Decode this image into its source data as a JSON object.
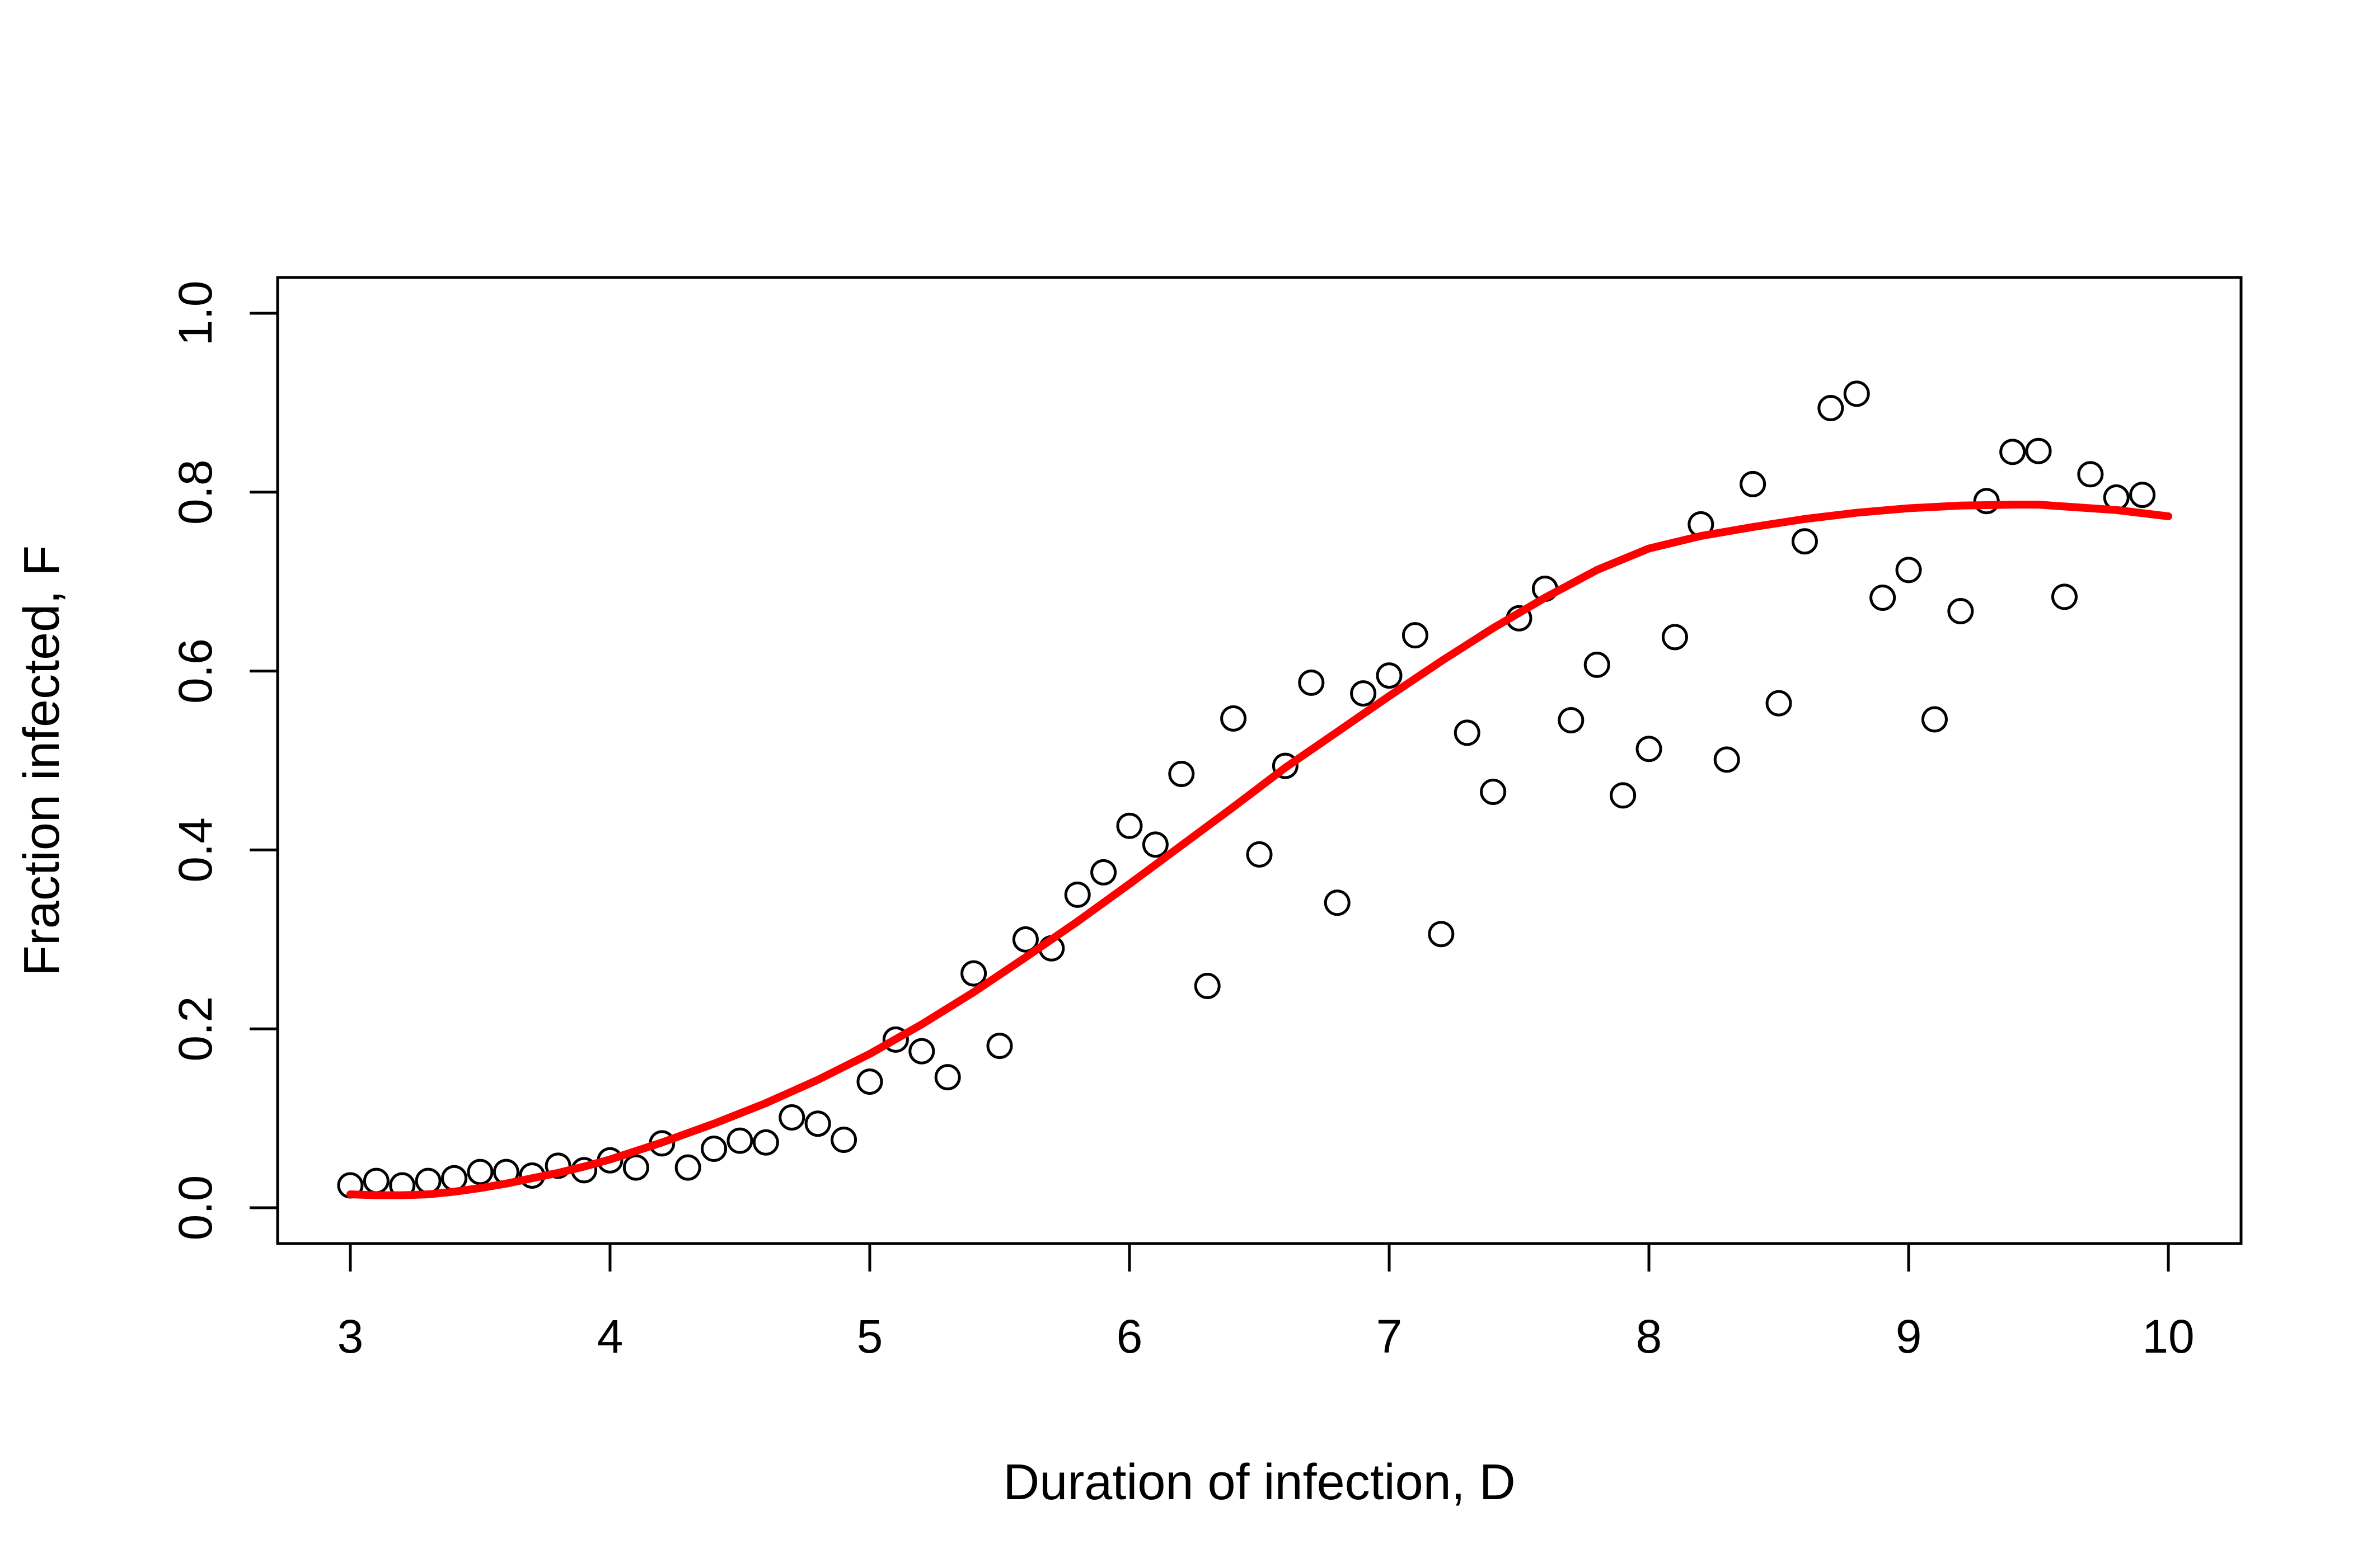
{
  "chart_data": {
    "type": "scatter",
    "title": "",
    "xlabel": "Duration of infection, D",
    "ylabel": "Fraction infected, F",
    "xlim": [
      2.72,
      10.28
    ],
    "ylim": [
      -0.04,
      1.04
    ],
    "x_ticks": [
      3,
      4,
      5,
      6,
      7,
      8,
      9,
      10
    ],
    "y_ticks": [
      0.0,
      0.2,
      0.4,
      0.6,
      0.8,
      1.0
    ],
    "x_tick_labels": [
      "3",
      "4",
      "5",
      "6",
      "7",
      "8",
      "9",
      "10"
    ],
    "y_tick_labels": [
      "0.0",
      "0.2",
      "0.4",
      "0.6",
      "0.8",
      "1.0"
    ],
    "grid": false,
    "legend": "none",
    "colors": {
      "points": "#000000",
      "fit": "#ff0000"
    },
    "series": [
      {
        "kind": "points",
        "x": [
          3.0,
          3.1,
          3.2,
          3.3,
          3.4,
          3.5,
          3.6,
          3.7,
          3.8,
          3.9,
          4.0,
          4.1,
          4.2,
          4.3,
          4.4,
          4.5,
          4.6,
          4.7,
          4.8,
          4.9,
          5.0,
          5.1,
          5.2,
          5.3,
          5.4,
          5.5,
          5.6,
          5.7,
          5.8,
          5.9,
          6.0,
          6.1,
          6.2,
          6.3,
          6.4,
          6.5,
          6.6,
          6.7,
          6.8,
          6.9,
          7.0,
          7.1,
          7.2,
          7.3,
          7.4,
          7.5,
          7.6,
          7.7,
          7.8,
          7.9,
          8.0,
          8.1,
          8.2,
          8.3,
          8.4,
          8.5,
          8.6,
          8.7,
          8.8,
          8.9,
          9.0,
          9.1,
          9.2,
          9.3,
          9.4,
          9.5,
          9.6,
          9.7,
          9.8,
          9.9
        ],
        "y": [
          0.025,
          0.03,
          0.025,
          0.03,
          0.033,
          0.04,
          0.04,
          0.036,
          0.047,
          0.042,
          0.053,
          0.045,
          0.072,
          0.045,
          0.066,
          0.075,
          0.073,
          0.101,
          0.094,
          0.076,
          0.141,
          0.188,
          0.175,
          0.146,
          0.262,
          0.181,
          0.3,
          0.29,
          0.35,
          0.375,
          0.427,
          0.406,
          0.485,
          0.248,
          0.547,
          0.395,
          0.494,
          0.587,
          0.341,
          0.575,
          0.595,
          0.64,
          0.306,
          0.531,
          0.465,
          0.659,
          0.692,
          0.545,
          0.607,
          0.461,
          0.513,
          0.638,
          0.764,
          0.501,
          0.809,
          0.564,
          0.745,
          0.894,
          0.91,
          0.682,
          0.713,
          0.546,
          0.667,
          0.79,
          0.845,
          0.846,
          0.683,
          0.82,
          0.794,
          0.797
        ]
      },
      {
        "kind": "fit-line",
        "x": [
          3.0,
          3.1,
          3.2,
          3.3,
          3.4,
          3.5,
          3.6,
          3.7,
          3.8,
          3.9,
          4.0,
          4.2,
          4.4,
          4.6,
          4.8,
          5.0,
          5.2,
          5.4,
          5.6,
          5.8,
          6.0,
          6.2,
          6.4,
          6.6,
          6.8,
          7.0,
          7.2,
          7.4,
          7.6,
          7.8,
          8.0,
          8.2,
          8.4,
          8.6,
          8.8,
          9.0,
          9.2,
          9.4,
          9.5,
          9.6,
          9.8,
          10.0
        ],
        "y": [
          0.015,
          0.014,
          0.014,
          0.015,
          0.018,
          0.022,
          0.027,
          0.033,
          0.039,
          0.046,
          0.054,
          0.073,
          0.094,
          0.117,
          0.143,
          0.172,
          0.205,
          0.241,
          0.28,
          0.32,
          0.362,
          0.405,
          0.448,
          0.492,
          0.532,
          0.572,
          0.611,
          0.648,
          0.682,
          0.713,
          0.737,
          0.751,
          0.761,
          0.77,
          0.777,
          0.782,
          0.785,
          0.786,
          0.786,
          0.784,
          0.78,
          0.773
        ]
      }
    ]
  }
}
